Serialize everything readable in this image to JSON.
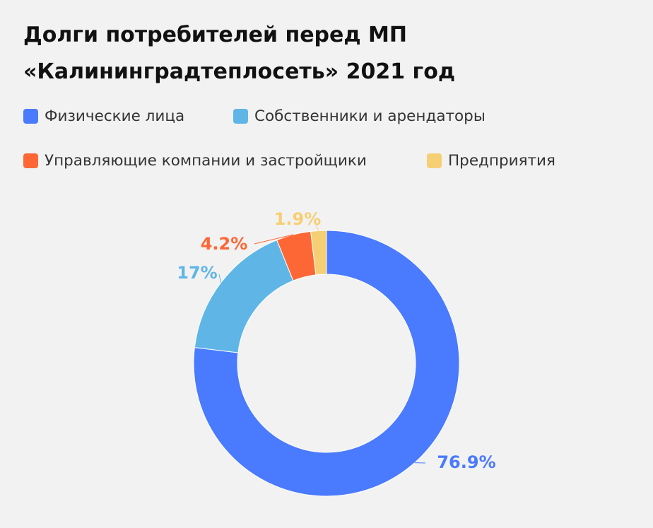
{
  "title_lines": [
    "Долги потребителей перед МП",
    "«Калининградтеплосеть» 2021 год"
  ],
  "legend": [
    {
      "label": "Физические лица",
      "color": "#4a7afe"
    },
    {
      "label": "Собственники и арендаторы",
      "color": "#5fb6e6"
    },
    {
      "label": "Управляющие компании и застройщики",
      "color": "#fd6735"
    },
    {
      "label": "Предприятия",
      "color": "#f6cf74"
    }
  ],
  "chart_data": {
    "type": "pie",
    "subtype": "donut",
    "title": "Долги потребителей перед МП «Калининградтеплосеть» 2021 год",
    "legend_position": "top-left",
    "slices": [
      {
        "name": "Физические лица",
        "value": 76.9,
        "label": "76.9%",
        "color": "#4a7afe"
      },
      {
        "name": "Собственники и арендаторы",
        "value": 17,
        "label": "17%",
        "color": "#5fb6e6"
      },
      {
        "name": "Управляющие компании и застройщики",
        "value": 4.2,
        "label": "4.2%",
        "color": "#fd6735"
      },
      {
        "name": "Предприятия",
        "value": 1.9,
        "label": "1.9%",
        "color": "#f6cf74"
      }
    ]
  }
}
